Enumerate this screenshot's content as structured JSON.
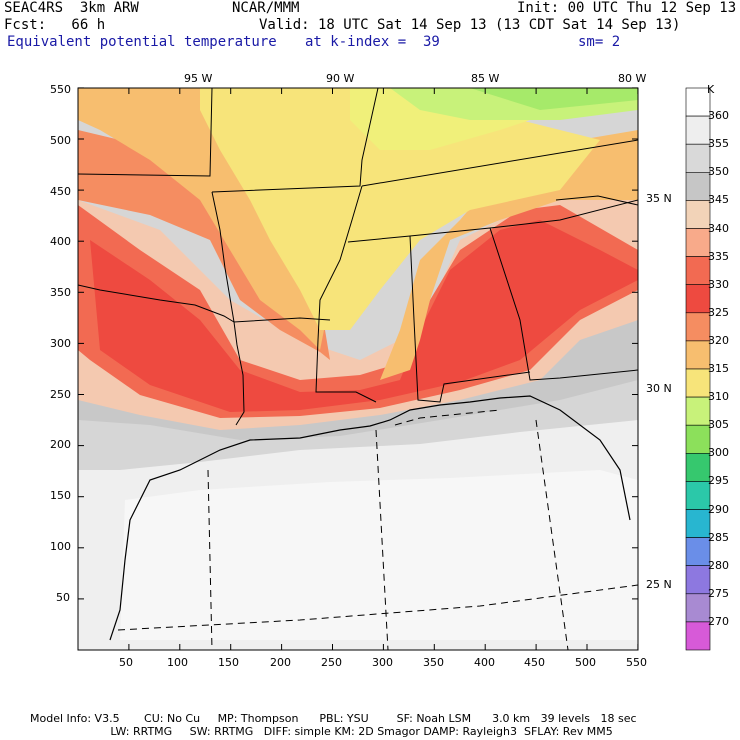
{
  "header": {
    "model": "SEAC4RS  3km ARW",
    "org": "NCAR/MMM",
    "init": "Init: 00 UTC Thu 12 Sep 13",
    "fcst": "Fcst:   66 h",
    "valid": "Valid: 18 UTC Sat 14 Sep 13 (13 CDT Sat 14 Sep 13)",
    "field": "Equivalent potential temperature",
    "level": "at k-index =  39",
    "smooth": "sm= 2"
  },
  "axes": {
    "x_ticks": [
      "50",
      "100",
      "150",
      "200",
      "250",
      "300",
      "350",
      "400",
      "450",
      "500",
      "550"
    ],
    "y_ticks": [
      "550",
      "500",
      "450",
      "400",
      "350",
      "300",
      "250",
      "200",
      "150",
      "100",
      "50"
    ],
    "lon_labels": [
      "95 W",
      "90 W",
      "85 W",
      "80 W"
    ],
    "lat_labels": [
      "35 N",
      "30 N",
      "25 N"
    ]
  },
  "colorbar": {
    "unit": "K",
    "levels": [
      "360",
      "355",
      "350",
      "345",
      "340",
      "335",
      "330",
      "325",
      "320",
      "315",
      "310",
      "305",
      "300",
      "295",
      "290",
      "285",
      "280",
      "275",
      "270"
    ],
    "colors": [
      "#ffffff",
      "#eeeeee",
      "#d9d9d9",
      "#c6c6c6",
      "#f2d3b8",
      "#f8aa8a",
      "#f26a52",
      "#ee4a40",
      "#f58d61",
      "#f7be6f",
      "#f7e47a",
      "#c8f27a",
      "#8ce05b",
      "#36c86e",
      "#2bc8a9",
      "#28b6d0",
      "#6a8ee8",
      "#8d78e0",
      "#a88ad2",
      "#d75ad8"
    ]
  },
  "footer": {
    "line1": "Model Info: V3.5       CU: No Cu     MP: Thompson      PBL: YSU        SF: Noah LSM      3.0 km   39 levels   18 sec",
    "line2": "                       LW: RRTMG     SW: RRTMG   DIFF: simple KM: 2D Smagor DAMP: Rayleigh3  SFLAY: Rev MM5"
  }
}
